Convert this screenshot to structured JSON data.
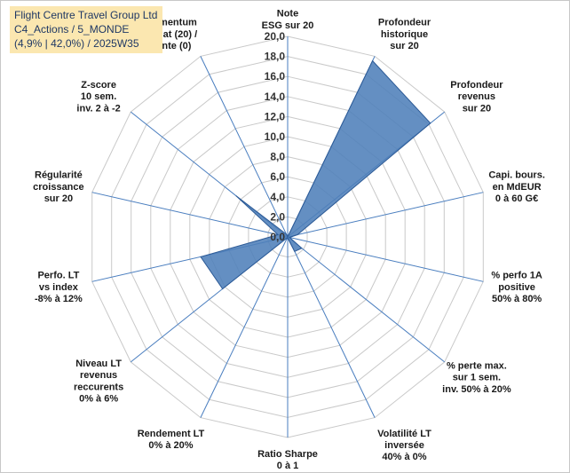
{
  "title_box": {
    "line1": "Flight Centre Travel Group Ltd",
    "line2": "C4_Actions / 5_MONDE",
    "line3": "(4,9% | 42,0%) / 2025W35"
  },
  "chart_data": {
    "type": "radar",
    "rmin": 0,
    "rmax": 20,
    "tick_labels": [
      "0,0",
      "2,0",
      "4,0",
      "6,0",
      "8,0",
      "10,0",
      "12,0",
      "14,0",
      "16,0",
      "18,0",
      "20,0"
    ],
    "axes": [
      {
        "label": [
          "Note",
          "ESG sur 20"
        ],
        "value": 0
      },
      {
        "label": [
          "Profondeur",
          "historique",
          "sur 20"
        ],
        "value": 19.5
      },
      {
        "label": [
          "Profondeur",
          "revenus",
          "sur 20"
        ],
        "value": 18.2
      },
      {
        "label": [
          "Capi. bours.",
          "en MdEUR",
          "0 à 60 G€"
        ],
        "value": 1.0
      },
      {
        "label": [
          "% perfo 1A",
          "positive",
          "50% à 80%"
        ],
        "value": 0.2
      },
      {
        "label": [
          "% perte max.",
          "sur 1 sem.",
          "inv. 50% à 20%"
        ],
        "value": 1.8
      },
      {
        "label": [
          "Volatilité LT",
          "inversée",
          "40% à 0%"
        ],
        "value": 1.6
      },
      {
        "label": [
          "Ratio Sharpe",
          "0 à 1"
        ],
        "value": 0.1
      },
      {
        "label": [
          "Rendement LT",
          "0% à 20%"
        ],
        "value": 0.1
      },
      {
        "label": [
          "Niveau LT",
          "revenus",
          "reccurents",
          "0% à 6%"
        ],
        "value": 8.3
      },
      {
        "label": [
          "Perfo. LT",
          "vs index",
          "-8% à 12%"
        ],
        "value": 8.9
      },
      {
        "label": [
          "Régularité",
          "croissance",
          "sur 20"
        ],
        "value": 1.0
      },
      {
        "label": [
          "Z-score",
          "10 sem.",
          "inv. 2 à -2"
        ],
        "value": 6.6
      },
      {
        "label": [
          "Momentum",
          "Achat (20) /",
          "Vente (0)"
        ],
        "value": 0.3
      }
    ],
    "colors": {
      "fill": "#4f7fba",
      "stroke": "#2c5a96",
      "grid": "#c9c9c9",
      "spoke": "#4a7ebf"
    },
    "grid": true
  }
}
